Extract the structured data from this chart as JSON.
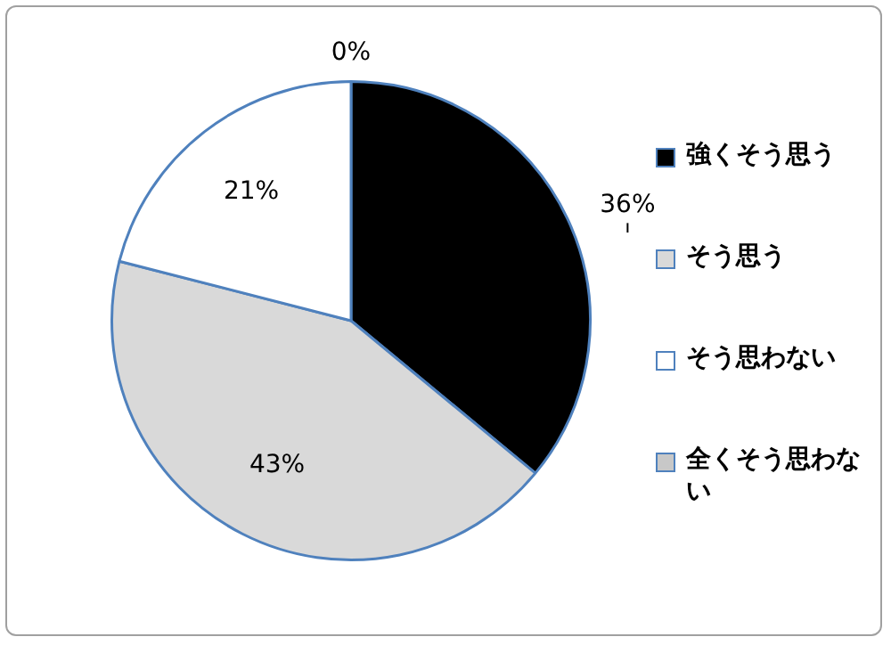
{
  "chart_data": {
    "type": "pie",
    "categories": [
      "強くそう思う",
      "そう思う",
      "そう思わない",
      "全くそう思わない"
    ],
    "values": [
      36,
      43,
      21,
      0
    ],
    "colors": [
      "#000000",
      "#d9d9d9",
      "#ffffff",
      "#c8c8c8"
    ],
    "value_labels": [
      "36%",
      "43%",
      "21%",
      "0%"
    ],
    "legend": "right"
  }
}
